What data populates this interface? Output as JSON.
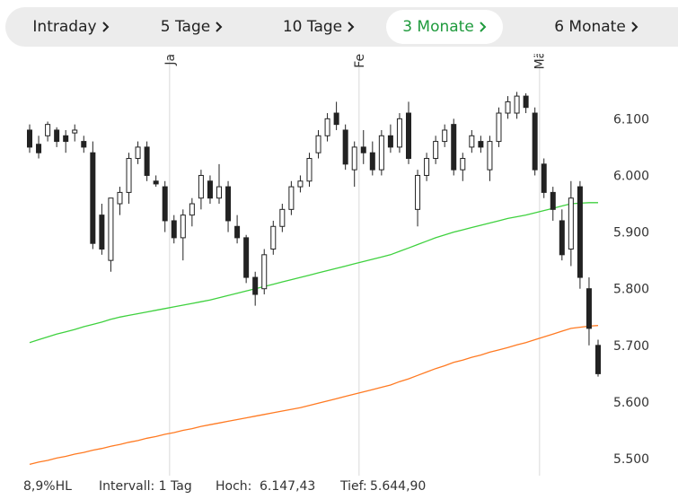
{
  "tabs": [
    {
      "label": "Intraday"
    },
    {
      "label": "5 Tage"
    },
    {
      "label": "10 Tage"
    },
    {
      "label": "3 Monate",
      "active": true
    },
    {
      "label": "6 Monate"
    }
  ],
  "chart_data": {
    "type": "candlestick",
    "open": [
      6080,
      6055,
      6070,
      6080,
      6070,
      6075,
      6060,
      6040,
      5930,
      5850,
      5950,
      5970,
      6030,
      6050,
      5990,
      5980,
      5920,
      5890,
      5930,
      5960,
      5990,
      5960,
      5980,
      5910,
      5890,
      5820,
      5800,
      5870,
      5910,
      5940,
      5980,
      5990,
      6040,
      6070,
      6110,
      6080,
      6010,
      6050,
      6040,
      6010,
      6070,
      6050,
      6110,
      5940,
      6000,
      6030,
      6060,
      6090,
      6010,
      6050,
      6060,
      6010,
      6060,
      6110,
      6110,
      6140,
      6110,
      6020,
      5970,
      5920,
      5870,
      5980,
      5800,
      5700
    ],
    "high": [
      6090,
      6070,
      6095,
      6085,
      6080,
      6090,
      6070,
      6060,
      5950,
      5960,
      5980,
      6040,
      6060,
      6060,
      6000,
      5990,
      5930,
      5940,
      5960,
      6010,
      6000,
      6020,
      5990,
      5930,
      5895,
      5830,
      5870,
      5920,
      5950,
      5990,
      6000,
      6040,
      6080,
      6110,
      6130,
      6090,
      6060,
      6080,
      6060,
      6080,
      6090,
      6110,
      6130,
      6010,
      6040,
      6070,
      6090,
      6100,
      6040,
      6080,
      6070,
      6070,
      6120,
      6140,
      6147.43,
      6145,
      6120,
      6030,
      5980,
      5940,
      5990,
      5990,
      5820,
      5710
    ],
    "low": [
      6040,
      6030,
      6060,
      6050,
      6040,
      6060,
      6040,
      5870,
      5860,
      5830,
      5930,
      5950,
      6020,
      5990,
      5980,
      5900,
      5880,
      5850,
      5910,
      5940,
      5950,
      5950,
      5900,
      5880,
      5810,
      5770,
      5790,
      5860,
      5900,
      5930,
      5970,
      5980,
      6030,
      6060,
      6080,
      6010,
      5980,
      6020,
      6000,
      6000,
      6040,
      6040,
      6020,
      5910,
      5990,
      6020,
      6050,
      6000,
      5990,
      6040,
      6040,
      5990,
      6050,
      6100,
      6100,
      6110,
      6000,
      5960,
      5920,
      5850,
      5840,
      5800,
      5700,
      5644.9
    ],
    "close": [
      6050,
      6040,
      6090,
      6060,
      6060,
      6080,
      6050,
      5880,
      5870,
      5960,
      5970,
      6030,
      6050,
      6000,
      5985,
      5920,
      5890,
      5930,
      5950,
      6000,
      5960,
      5980,
      5920,
      5890,
      5820,
      5790,
      5860,
      5910,
      5940,
      5980,
      5990,
      6030,
      6070,
      6100,
      6090,
      6020,
      6050,
      6040,
      6010,
      6070,
      6050,
      6100,
      6030,
      6000,
      6030,
      6060,
      6080,
      6010,
      6030,
      6070,
      6050,
      6060,
      6110,
      6130,
      6140,
      6120,
      6010,
      5970,
      5940,
      5860,
      5960,
      5820,
      5730,
      5650
    ],
    "candle_color": "#222222",
    "up_fill": "#ffffff",
    "series": [
      {
        "color": "#3fd13f",
        "values": [
          5705,
          5710,
          5715,
          5720,
          5724,
          5728,
          5733,
          5737,
          5741,
          5746,
          5750,
          5753,
          5756,
          5759,
          5762,
          5765,
          5768,
          5771,
          5774,
          5777,
          5780,
          5784,
          5788,
          5792,
          5796,
          5800,
          5804,
          5808,
          5812,
          5816,
          5820,
          5824,
          5828,
          5832,
          5836,
          5840,
          5844,
          5848,
          5852,
          5856,
          5860,
          5866,
          5872,
          5878,
          5884,
          5890,
          5895,
          5900,
          5904,
          5908,
          5912,
          5916,
          5920,
          5924,
          5927,
          5930,
          5934,
          5938,
          5942,
          5946,
          5950,
          5951,
          5952,
          5952
        ]
      },
      {
        "color": "#ff7a22",
        "values": [
          5490,
          5494,
          5497,
          5501,
          5504,
          5508,
          5511,
          5515,
          5518,
          5522,
          5525,
          5529,
          5532,
          5536,
          5539,
          5543,
          5546,
          5550,
          5553,
          5557,
          5560,
          5563,
          5566,
          5569,
          5572,
          5575,
          5578,
          5581,
          5584,
          5587,
          5590,
          5594,
          5598,
          5602,
          5606,
          5610,
          5614,
          5618,
          5622,
          5626,
          5630,
          5636,
          5641,
          5647,
          5653,
          5659,
          5664,
          5670,
          5674,
          5679,
          5683,
          5688,
          5692,
          5696,
          5701,
          5705,
          5710,
          5715,
          5720,
          5725,
          5730,
          5732,
          5734,
          5735
        ]
      }
    ],
    "month_markers": [
      {
        "index": 16,
        "label": "Jan"
      },
      {
        "index": 37,
        "label": "Feb"
      },
      {
        "index": 57,
        "label": "Mär"
      }
    ],
    "ylim": [
      5470,
      6175
    ],
    "yticks": [
      {
        "value": 5500,
        "label": "5.500"
      },
      {
        "value": 5600,
        "label": "5.600"
      },
      {
        "value": 5700,
        "label": "5.700"
      },
      {
        "value": 5800,
        "label": "5.800"
      },
      {
        "value": 5900,
        "label": "5.900"
      },
      {
        "value": 6000,
        "label": "6.000"
      },
      {
        "value": 6100,
        "label": "6.100"
      }
    ],
    "grid_color": "#e6e6e6"
  },
  "stats": [
    "8,9%HL",
    "Intervall: 1 Tag",
    "Hoch:",
    "6.147,43",
    "Tief:",
    "5.644,90"
  ]
}
